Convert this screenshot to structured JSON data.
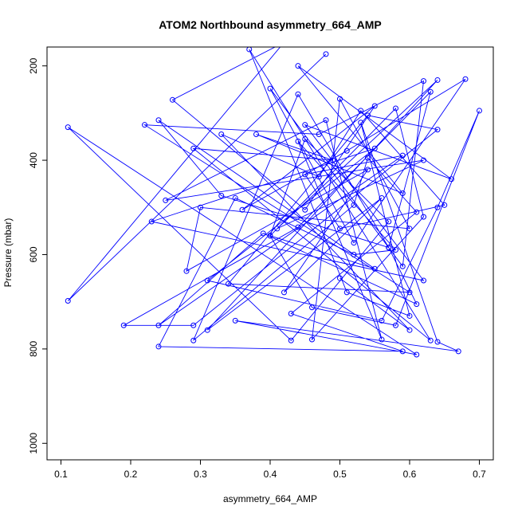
{
  "chart_data": {
    "type": "line",
    "title": "ATOM2 Northbound asymmetry_664_AMP",
    "xlabel": "asymmetry_664_AMP",
    "ylabel": "Pressure (mbar)",
    "xlim": [
      0.08,
      0.72
    ],
    "ylim": [
      1035,
      160
    ],
    "y_reversed": true,
    "x_ticks": [
      0.1,
      0.2,
      0.3,
      0.4,
      0.5,
      0.6,
      0.7
    ],
    "x_tick_labels": [
      "0.1",
      "0.2",
      "0.3",
      "0.4",
      "0.5",
      "0.6",
      "0.7"
    ],
    "y_ticks": [
      200,
      400,
      600,
      800,
      1000
    ],
    "y_tick_labels": [
      "200",
      "400",
      "600",
      "800",
      "1000"
    ],
    "grid": false,
    "series": [
      {
        "name": "",
        "color": "#0000ff",
        "marker": "open-circle",
        "points": [
          [
            0.48,
            175
          ],
          [
            0.11,
            698
          ],
          [
            0.42,
            150
          ],
          [
            0.26,
            272
          ],
          [
            0.45,
            505
          ],
          [
            0.55,
            285
          ],
          [
            0.36,
            505
          ],
          [
            0.51,
            380
          ],
          [
            0.68,
            228
          ],
          [
            0.52,
            575
          ],
          [
            0.4,
            248
          ],
          [
            0.59,
            625
          ],
          [
            0.62,
            232
          ],
          [
            0.47,
            345
          ],
          [
            0.22,
            325
          ],
          [
            0.6,
            680
          ],
          [
            0.34,
            662
          ],
          [
            0.54,
            305
          ],
          [
            0.64,
            335
          ],
          [
            0.29,
            750
          ],
          [
            0.19,
            750
          ],
          [
            0.44,
            542
          ],
          [
            0.63,
            255
          ],
          [
            0.57,
            585
          ],
          [
            0.33,
            475
          ],
          [
            0.24,
            315
          ],
          [
            0.55,
            630
          ],
          [
            0.4,
            560
          ],
          [
            0.46,
            712
          ],
          [
            0.58,
            750
          ],
          [
            0.7,
            295
          ],
          [
            0.64,
            500
          ],
          [
            0.56,
            740
          ],
          [
            0.31,
            655
          ],
          [
            0.55,
            375
          ],
          [
            0.23,
            530
          ],
          [
            0.62,
            655
          ],
          [
            0.45,
            325
          ],
          [
            0.66,
            440
          ],
          [
            0.44,
            200
          ],
          [
            0.59,
            470
          ],
          [
            0.38,
            345
          ],
          [
            0.49,
            400
          ],
          [
            0.29,
            375
          ],
          [
            0.63,
            782
          ],
          [
            0.37,
            165
          ],
          [
            0.51,
            680
          ],
          [
            0.6,
            730
          ],
          [
            0.53,
            320
          ],
          [
            0.64,
            785
          ],
          [
            0.67,
            805
          ],
          [
            0.35,
            740
          ],
          [
            0.61,
            812
          ],
          [
            0.11,
            330
          ],
          [
            0.43,
            782
          ],
          [
            0.57,
            530
          ],
          [
            0.45,
            355
          ],
          [
            0.4,
            560
          ],
          [
            0.58,
            290
          ],
          [
            0.62,
            520
          ],
          [
            0.46,
            780
          ],
          [
            0.5,
            270
          ],
          [
            0.6,
            545
          ],
          [
            0.3,
            500
          ],
          [
            0.28,
            635
          ],
          [
            0.54,
            420
          ],
          [
            0.42,
            680
          ],
          [
            0.56,
            480
          ],
          [
            0.31,
            760
          ],
          [
            0.64,
            230
          ],
          [
            0.41,
            545
          ],
          [
            0.62,
            400
          ],
          [
            0.25,
            485
          ],
          [
            0.48,
            315
          ],
          [
            0.56,
            780
          ],
          [
            0.44,
            360
          ],
          [
            0.58,
            590
          ],
          [
            0.52,
            600
          ],
          [
            0.35,
            480
          ],
          [
            0.24,
            795
          ],
          [
            0.59,
            805
          ],
          [
            0.43,
            725
          ],
          [
            0.61,
            510
          ],
          [
            0.54,
            395
          ],
          [
            0.52,
            495
          ],
          [
            0.29,
            782
          ],
          [
            0.44,
            260
          ],
          [
            0.57,
            585
          ],
          [
            0.61,
            705
          ],
          [
            0.39,
            555
          ],
          [
            0.24,
            750
          ],
          [
            0.59,
            390
          ],
          [
            0.45,
            430
          ],
          [
            0.5,
            545
          ],
          [
            0.65,
            495
          ],
          [
            0.53,
            295
          ],
          [
            0.47,
            435
          ],
          [
            0.33,
            345
          ],
          [
            0.6,
            760
          ],
          [
            0.5,
            650
          ]
        ]
      }
    ]
  }
}
